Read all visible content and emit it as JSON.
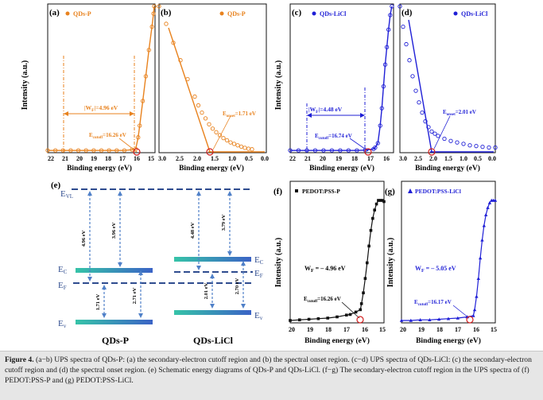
{
  "colors": {
    "orange": "#e8821e",
    "blue": "#1f1fd6",
    "black": "#111111",
    "red": "#d21f1f",
    "dash": "#2f4c8f",
    "arrow": "#4f80c8"
  },
  "panels": {
    "a": {
      "letter": "(a)",
      "legend": "QDs-P",
      "xlabel": "Binding energy (eV)",
      "ylabel": "Intensity (a.u.)",
      "ticks": [
        "22",
        "21",
        "20",
        "19",
        "18",
        "17",
        "16",
        "15"
      ],
      "wf_label": "|W",
      "wf_sub": "F",
      "wf_value": "|=4.96 eV",
      "cut_label": "E",
      "cut_sub": "cutoff",
      "cut_value": "=16.26 eV"
    },
    "b": {
      "letter": "(b)",
      "legend": "QDs-P",
      "xlabel": "Binding energy (eV)",
      "ticks": [
        "3.0",
        "2.5",
        "2.0",
        "1.5",
        "1.0",
        "0.5",
        "0.0"
      ],
      "on_label": "E",
      "on_sub": "onset",
      "on_value": "=1.71 eV"
    },
    "c": {
      "letter": "(c)",
      "legend": "QDs-LiCl",
      "xlabel": "Binding energy (eV)",
      "ylabel": "Intensity (a.u.)",
      "ticks": [
        "22",
        "21",
        "20",
        "19",
        "18",
        "17",
        "16"
      ],
      "wf_label": "|W",
      "wf_sub": "F",
      "wf_value": "|=4.48 eV",
      "cut_label": "E",
      "cut_sub": "cutoff",
      "cut_value": "=16.74 eV"
    },
    "d": {
      "letter": "(d)",
      "legend": "QDs-LiCl",
      "xlabel": "Binding energy (eV)",
      "ticks": [
        "3.0",
        "2.5",
        "2.0",
        "1.5",
        "1.0",
        "0.5",
        "0.0"
      ],
      "on_label": "E",
      "on_sub": "onset",
      "on_value": "=2.01 eV"
    },
    "e": {
      "letter": "(e)",
      "labels": {
        "evl": "E",
        "evl_sub": "VL",
        "ec": "E",
        "ec_sub": "C",
        "ef": "E",
        "ef_sub": "F",
        "ev": "E",
        "ev_sub": "v"
      },
      "p": {
        "name": "QDs-P",
        "wf": "4.96 eV",
        "ec": "3.96 eV",
        "hv": "1.71 eV",
        "eg": "2.71 eV"
      },
      "l": {
        "name": "QDs-LiCl",
        "wf": "4.48 eV",
        "ec": "3.79 eV",
        "hv": "2.01 eV",
        "eg": "2.70 eV"
      }
    },
    "f": {
      "letter": "(f)",
      "legend": "PEDOT:PSS-P",
      "xlabel": "Binding energy (eV)",
      "ylabel": "Intensity (a.u.)",
      "ticks": [
        "20",
        "19",
        "18",
        "17",
        "16",
        "15"
      ],
      "wf_label": "W",
      "wf_sub": "F",
      "wf_value": " = – 4.96 eV",
      "cut_label": "E",
      "cut_sub": "cutoff",
      "cut_value": "=16.26 eV"
    },
    "g": {
      "letter": "(g)",
      "legend": "PEDOT:PSS-LiCl",
      "xlabel": "Binding energy (eV)",
      "ylabel": "Intensity (a.u.)",
      "ticks": [
        "20",
        "19",
        "18",
        "17",
        "16",
        "15"
      ],
      "wf_label": "W",
      "wf_sub": "F",
      "wf_value": " = – 5.05 eV",
      "cut_label": "E",
      "cut_sub": "cutoff",
      "cut_value": "=16.17 eV"
    }
  },
  "caption": {
    "figure": "Figure 4.",
    "text": " (a−b) UPS spectra of QDs-P: (a) the secondary-electron cutoff region and (b) the spectral onset region. (c−d) UPS spectra of QDs-LiCl: (c) the secondary-electron cutoff region and (d) the spectral onset region. (e) Schematic energy diagrams of QDs-P and QDs-LiCl. (f−g) The secondary-electron cutoff region in the UPS spectra of (f) PEDOT:PSS-P and (g) PEDOT:PSS-LiCl."
  },
  "chart_data": [
    {
      "panel": "a",
      "type": "scatter",
      "title": "QDs-P",
      "xlabel": "Binding energy (eV)",
      "ylabel": "Intensity (a.u.)",
      "xlim": [
        22,
        15
      ],
      "series": [
        {
          "name": "QDs-P",
          "x": [
            22,
            21.5,
            21,
            20.5,
            20,
            19.5,
            19,
            18.5,
            18,
            17.5,
            17,
            16.5,
            16.26,
            16.1,
            16,
            15.8,
            15.6,
            15.4,
            15.2,
            15.1,
            15.05
          ],
          "y": [
            0.01,
            0.01,
            0.01,
            0.01,
            0.01,
            0.01,
            0.01,
            0.01,
            0.01,
            0.01,
            0.01,
            0.015,
            0.02,
            0.1,
            0.18,
            0.35,
            0.52,
            0.7,
            0.86,
            0.95,
            1.0
          ]
        }
      ],
      "annotations": [
        "|WF|=4.96 eV",
        "Ecutoff=16.26 eV"
      ]
    },
    {
      "panel": "b",
      "type": "scatter",
      "title": "QDs-P",
      "xlabel": "Binding energy (eV)",
      "xlim": [
        3.0,
        0.0
      ],
      "series": [
        {
          "name": "QDs-P",
          "x": [
            3.0,
            2.8,
            2.6,
            2.4,
            2.2,
            2.0,
            1.9,
            1.8,
            1.7,
            1.6,
            1.5,
            1.4,
            1.3,
            1.2,
            1.1,
            1.0,
            0.9,
            0.8,
            0.7,
            0.6,
            0.5,
            0.4
          ],
          "y": [
            1.0,
            0.88,
            0.75,
            0.63,
            0.5,
            0.38,
            0.32,
            0.27,
            0.23,
            0.19,
            0.16,
            0.135,
            0.115,
            0.095,
            0.08,
            0.065,
            0.055,
            0.045,
            0.036,
            0.028,
            0.022,
            0.018
          ]
        }
      ],
      "annotations": [
        "Eonset=1.71 eV"
      ]
    },
    {
      "panel": "c",
      "type": "scatter",
      "title": "QDs-LiCl",
      "xlabel": "Binding energy (eV)",
      "ylabel": "Intensity (a.u.)",
      "xlim": [
        22,
        15.8
      ],
      "series": [
        {
          "name": "QDs-LiCl",
          "x": [
            22,
            21.5,
            21,
            20.5,
            20,
            19.5,
            19,
            18.5,
            18,
            17.5,
            17,
            16.9,
            16.74,
            16.6,
            16.5,
            16.4,
            16.3,
            16.2,
            16.1,
            16.0,
            15.9
          ],
          "y": [
            0.01,
            0.01,
            0.01,
            0.01,
            0.01,
            0.01,
            0.01,
            0.01,
            0.01,
            0.012,
            0.02,
            0.03,
            0.06,
            0.18,
            0.3,
            0.45,
            0.6,
            0.72,
            0.84,
            0.94,
            1.0
          ]
        }
      ],
      "annotations": [
        "|WF|=4.48 eV",
        "Ecutoff=16.74 eV"
      ]
    },
    {
      "panel": "d",
      "type": "scatter",
      "title": "QDs-LiCl",
      "xlabel": "Binding energy (eV)",
      "xlim": [
        3.0,
        0.0
      ],
      "series": [
        {
          "name": "QDs-LiCl",
          "x": [
            3.0,
            2.9,
            2.8,
            2.7,
            2.6,
            2.5,
            2.4,
            2.3,
            2.2,
            2.1,
            2.0,
            1.9,
            1.8,
            1.6,
            1.4,
            1.2,
            1.0,
            0.8,
            0.6,
            0.4,
            0.2,
            0.0
          ],
          "y": [
            1.0,
            0.86,
            0.74,
            0.63,
            0.52,
            0.42,
            0.34,
            0.27,
            0.21,
            0.17,
            0.14,
            0.125,
            0.11,
            0.09,
            0.075,
            0.065,
            0.055,
            0.045,
            0.04,
            0.035,
            0.03,
            0.03
          ]
        }
      ],
      "annotations": [
        "Eonset=2.01 eV"
      ]
    },
    {
      "panel": "f",
      "type": "scatter",
      "title": "PEDOT:PSS-P",
      "xlabel": "Binding energy (eV)",
      "ylabel": "Intensity (a.u.)",
      "xlim": [
        20,
        15
      ],
      "series": [
        {
          "name": "PEDOT:PSS-P",
          "x": [
            20,
            19.5,
            19,
            18.5,
            18,
            17.5,
            17,
            16.8,
            16.5,
            16.26,
            16.2,
            16.1,
            16.0,
            15.9,
            15.8,
            15.7,
            15.6,
            15.5,
            15.4,
            15.3,
            15.2,
            15.1,
            15.0
          ],
          "y": [
            0.0,
            0.005,
            0.01,
            0.015,
            0.02,
            0.03,
            0.045,
            0.05,
            0.07,
            0.09,
            0.14,
            0.23,
            0.35,
            0.48,
            0.62,
            0.75,
            0.85,
            0.92,
            0.97,
            1.0,
            1.0,
            1.0,
            0.99
          ]
        }
      ],
      "annotations": [
        "WF = – 4.96 eV",
        "Ecutoff=16.26 eV"
      ]
    },
    {
      "panel": "g",
      "type": "scatter",
      "title": "PEDOT:PSS-LiCl",
      "xlabel": "Binding energy (eV)",
      "ylabel": "Intensity (a.u.)",
      "xlim": [
        20,
        15
      ],
      "series": [
        {
          "name": "PEDOT:PSS-LiCl",
          "x": [
            20,
            19.5,
            19,
            18.5,
            18,
            17.5,
            17,
            16.5,
            16.17,
            16.1,
            16.0,
            15.9,
            15.8,
            15.7,
            15.6,
            15.5,
            15.4,
            15.3,
            15.2,
            15.1,
            15.0
          ],
          "y": [
            0.0,
            0.0,
            0.005,
            0.005,
            0.01,
            0.015,
            0.02,
            0.03,
            0.04,
            0.09,
            0.2,
            0.35,
            0.52,
            0.67,
            0.79,
            0.88,
            0.94,
            0.98,
            1.0,
            1.0,
            1.0
          ]
        }
      ],
      "annotations": [
        "WF = – 5.05 eV",
        "Ecutoff=16.17 eV"
      ]
    }
  ]
}
